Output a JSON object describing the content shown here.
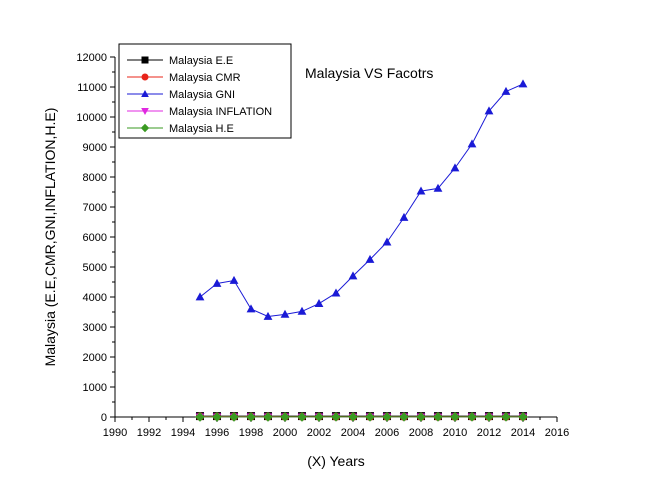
{
  "chart_data": {
    "type": "line",
    "title": "Malaysia VS Facotrs",
    "xlabel": "(X) Years",
    "ylabel": "Malaysia (E.E,CMR,GNI,INFLATION,H.E)",
    "xlim": [
      1990,
      2016
    ],
    "ylim": [
      0,
      12000
    ],
    "xticks": [
      "1990",
      "1992",
      "1994",
      "1996",
      "1998",
      "2000",
      "2002",
      "2004",
      "2006",
      "2008",
      "2010",
      "2012",
      "2014",
      "2016"
    ],
    "yticks": [
      "0",
      "1000",
      "2000",
      "3000",
      "4000",
      "5000",
      "6000",
      "7000",
      "8000",
      "9000",
      "10000",
      "11000",
      "12000"
    ],
    "grid": false,
    "legend_position": "top-left",
    "x": [
      1995,
      1996,
      1997,
      1998,
      1999,
      2000,
      2001,
      2002,
      2003,
      2004,
      2005,
      2006,
      2007,
      2008,
      2009,
      2010,
      2011,
      2012,
      2013,
      2014
    ],
    "series": [
      {
        "name": "Malaysia  E.E",
        "marker": "square",
        "color": "#000000",
        "values": [
          30,
          30,
          30,
          30,
          30,
          30,
          30,
          30,
          30,
          30,
          30,
          30,
          30,
          30,
          30,
          30,
          30,
          30,
          30,
          30
        ]
      },
      {
        "name": "Malaysia  CMR",
        "marker": "circle",
        "color": "#e8241a",
        "values": [
          15,
          14,
          13,
          12,
          11,
          10,
          9,
          9,
          8,
          8,
          7,
          7,
          7,
          7,
          7,
          7,
          7,
          7,
          7,
          7
        ]
      },
      {
        "name": "Malaysia GNI",
        "marker": "triangle-up",
        "color": "#1a1ad6",
        "values": [
          4000,
          4450,
          4550,
          3600,
          3350,
          3420,
          3520,
          3780,
          4130,
          4700,
          5250,
          5830,
          6650,
          7530,
          7620,
          8300,
          9100,
          10200,
          10850,
          11100
        ]
      },
      {
        "name": "Malaysia INFLATION",
        "marker": "triangle-down",
        "color": "#e028e0",
        "values": [
          3,
          3,
          3,
          5,
          3,
          2,
          1,
          2,
          1,
          1,
          3,
          4,
          2,
          5,
          1,
          2,
          3,
          2,
          2,
          3
        ]
      },
      {
        "name": "Malaysia H.E",
        "marker": "diamond",
        "color": "#3a9a22",
        "values": [
          3,
          3,
          3,
          3,
          3,
          3,
          3,
          3,
          4,
          4,
          4,
          4,
          4,
          4,
          5,
          5,
          5,
          5,
          5,
          5
        ]
      }
    ]
  }
}
